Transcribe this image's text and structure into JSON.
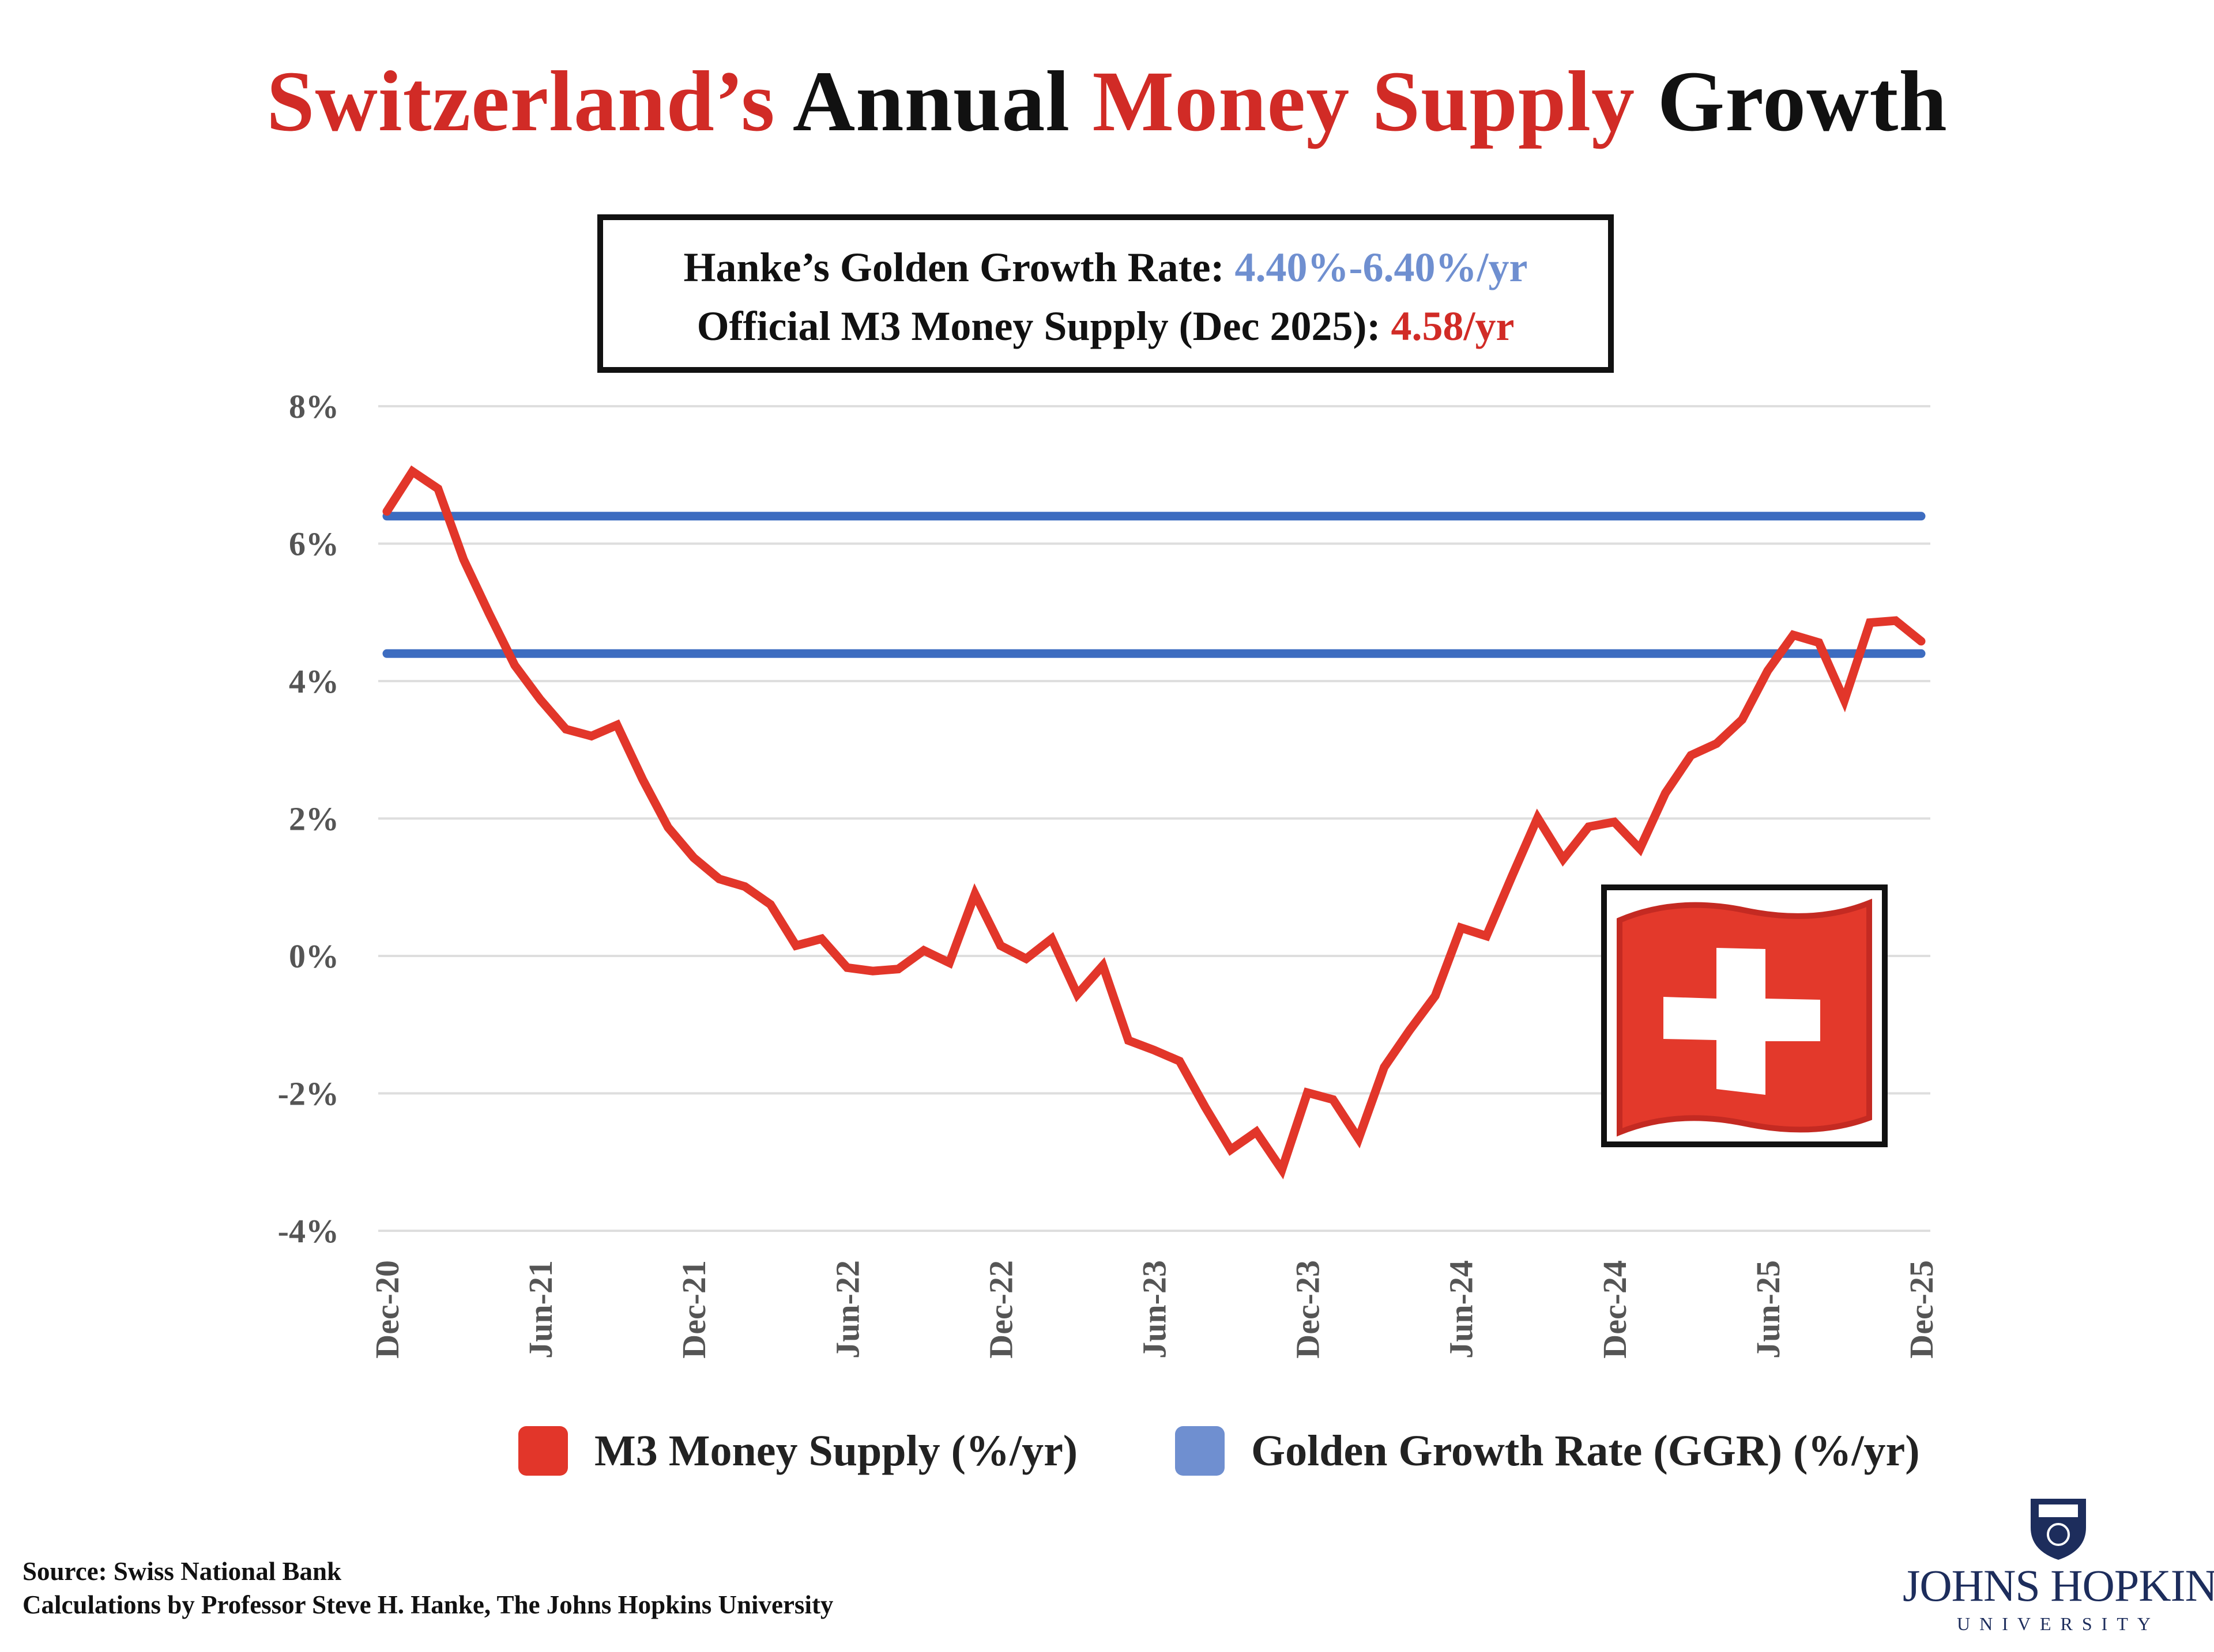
{
  "title": {
    "part1": "Switzerland’s",
    "part2": "Annual",
    "part3": "Money Supply",
    "part4": "Growth"
  },
  "infobox": {
    "line1_label": "Hanke’s Golden Growth Rate: ",
    "line1_value": "4.40%-6.40%/yr",
    "line2_label": "Official M3 Money Supply (Dec 2025): ",
    "line2_value": "4.58/yr"
  },
  "chart_data": {
    "type": "line",
    "title": "Switzerland’s Annual Money Supply Growth",
    "xlabel": "",
    "ylabel": "",
    "ylim": [
      -4,
      8
    ],
    "yticks": [
      8,
      6,
      4,
      2,
      0,
      -2,
      -4
    ],
    "ytick_labels": [
      "8%",
      "6%",
      "4%",
      "2%",
      "0%",
      "-2%",
      "-4%"
    ],
    "x_tick_labels": [
      "Dec-20",
      "Jun-21",
      "Dec-21",
      "Jun-22",
      "Dec-22",
      "Jun-23",
      "Dec-23",
      "Jun-24",
      "Dec-24",
      "Jun-25",
      "Dec-25"
    ],
    "x_start": "Dec-20",
    "x_end": "Dec-25",
    "x_frequency": "monthly",
    "grid": true,
    "legend_position": "bottom",
    "series": [
      {
        "name": "M3 Money Supply (%/yr)",
        "color": "#e2362a",
        "values": [
          6.47,
          7.05,
          6.8,
          5.77,
          4.98,
          4.23,
          3.73,
          3.3,
          3.2,
          3.36,
          2.57,
          1.87,
          1.43,
          1.12,
          1.01,
          0.75,
          0.15,
          0.25,
          -0.17,
          -0.22,
          -0.19,
          0.08,
          -0.1,
          0.9,
          0.15,
          -0.04,
          0.25,
          -0.56,
          -0.14,
          -1.23,
          -1.37,
          -1.53,
          -2.2,
          -2.82,
          -2.56,
          -3.11,
          -1.99,
          -2.09,
          -2.66,
          -1.62,
          -1.08,
          -0.58,
          0.41,
          0.29,
          1.16,
          2.01,
          1.41,
          1.88,
          1.95,
          1.56,
          2.37,
          2.92,
          3.09,
          3.44,
          4.15,
          4.67,
          4.56,
          3.72,
          4.85,
          4.88,
          4.58
        ]
      },
      {
        "name": "Golden Growth Rate (GGR) (%/yr)",
        "color": "#3d6cc0",
        "lower": 4.4,
        "upper": 6.4
      }
    ]
  },
  "legend": {
    "m3_label": "M3 Money Supply (%/yr)",
    "m3_color": "#e2362a",
    "ggr_label": "Golden Growth Rate (GGR) (%/yr)",
    "ggr_color": "#6f8fd0"
  },
  "footer": {
    "source": "Source:  Swiss National Bank",
    "calculations": "Calculations by Professor Steve H. Hanke, The Johns Hopkins University"
  },
  "logo": {
    "name": "JOHNS HOPKINS",
    "sub": "UNIVERSITY"
  },
  "flag_icon": "swiss-flag-icon"
}
